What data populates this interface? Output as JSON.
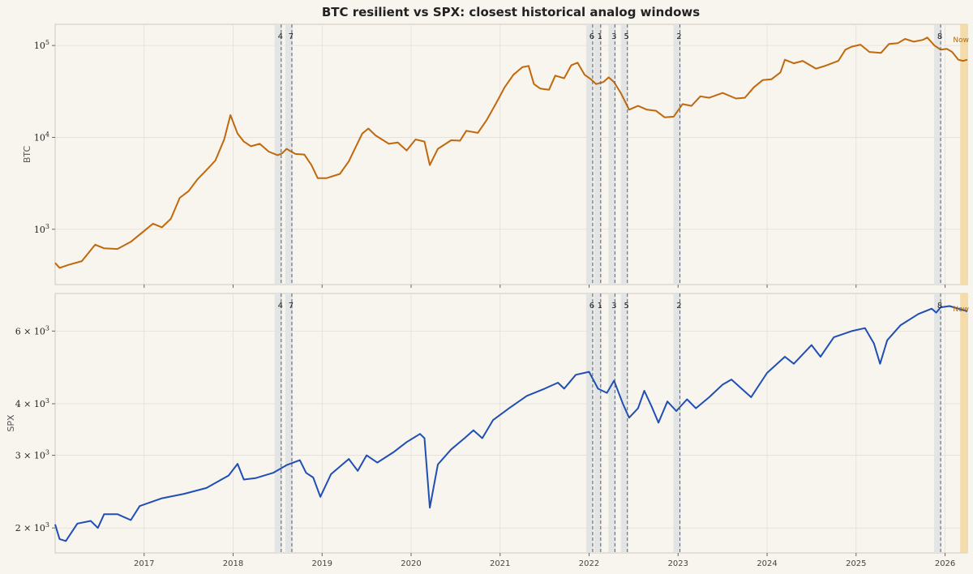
{
  "title": "BTC resilient vs SPX: closest historical analog windows",
  "colors": {
    "background": "#f8f4ee",
    "btc_line": "#c0690c",
    "spx_line": "#1f4fb5",
    "window_shade": "#dfe3e1",
    "now_shade": "#f3dcaa",
    "grid": "#e4ded6"
  },
  "chart_data": {
    "type": "line",
    "x_range": [
      2016.0,
      2026.25
    ],
    "x_ticks": [
      "2017",
      "2018",
      "2019",
      "2020",
      "2021",
      "2022",
      "2023",
      "2024",
      "2025",
      "2026"
    ],
    "analog_windows": [
      {
        "label": "4",
        "x": 2018.54
      },
      {
        "label": "7",
        "x": 2018.66
      },
      {
        "label": "6",
        "x": 2022.04
      },
      {
        "label": "1",
        "x": 2022.13
      },
      {
        "label": "3",
        "x": 2022.29
      },
      {
        "label": "5",
        "x": 2022.43
      },
      {
        "label": "2",
        "x": 2023.02
      },
      {
        "label": "8",
        "x": 2025.95
      }
    ],
    "now_label": "Now",
    "now_window": [
      2026.17,
      2026.25
    ],
    "panels": [
      {
        "name": "btc",
        "series_name": "BTC",
        "ylabel": "BTC",
        "scale": "log",
        "ylim": [
          250,
          170000
        ],
        "y_tick_labels": [
          {
            "value": 1000,
            "base": "10",
            "exp": "3"
          },
          {
            "value": 10000,
            "base": "10",
            "exp": "4"
          },
          {
            "value": 100000,
            "base": "10",
            "exp": "5"
          }
        ],
        "points": [
          [
            2016.0,
            430
          ],
          [
            2016.05,
            380
          ],
          [
            2016.15,
            410
          ],
          [
            2016.3,
            450
          ],
          [
            2016.45,
            680
          ],
          [
            2016.55,
            620
          ],
          [
            2016.7,
            610
          ],
          [
            2016.85,
            730
          ],
          [
            2017.0,
            960
          ],
          [
            2017.1,
            1150
          ],
          [
            2017.2,
            1050
          ],
          [
            2017.3,
            1300
          ],
          [
            2017.4,
            2200
          ],
          [
            2017.5,
            2600
          ],
          [
            2017.6,
            3500
          ],
          [
            2017.7,
            4400
          ],
          [
            2017.8,
            5600
          ],
          [
            2017.9,
            9500
          ],
          [
            2017.97,
            17500
          ],
          [
            2018.05,
            11000
          ],
          [
            2018.12,
            9000
          ],
          [
            2018.2,
            8000
          ],
          [
            2018.3,
            8500
          ],
          [
            2018.4,
            7000
          ],
          [
            2018.5,
            6400
          ],
          [
            2018.55,
            6700
          ],
          [
            2018.6,
            7500
          ],
          [
            2018.7,
            6600
          ],
          [
            2018.8,
            6500
          ],
          [
            2018.88,
            5000
          ],
          [
            2018.95,
            3600
          ],
          [
            2019.05,
            3600
          ],
          [
            2019.2,
            4000
          ],
          [
            2019.3,
            5500
          ],
          [
            2019.45,
            11000
          ],
          [
            2019.52,
            12500
          ],
          [
            2019.6,
            10500
          ],
          [
            2019.75,
            8500
          ],
          [
            2019.85,
            8800
          ],
          [
            2019.95,
            7200
          ],
          [
            2020.05,
            9500
          ],
          [
            2020.15,
            9000
          ],
          [
            2020.21,
            5000
          ],
          [
            2020.3,
            7500
          ],
          [
            2020.45,
            9300
          ],
          [
            2020.55,
            9200
          ],
          [
            2020.62,
            11800
          ],
          [
            2020.75,
            11200
          ],
          [
            2020.85,
            15500
          ],
          [
            2020.95,
            23000
          ],
          [
            2021.05,
            35000
          ],
          [
            2021.15,
            48000
          ],
          [
            2021.25,
            58000
          ],
          [
            2021.32,
            60000
          ],
          [
            2021.38,
            38000
          ],
          [
            2021.45,
            34000
          ],
          [
            2021.55,
            33000
          ],
          [
            2021.62,
            47000
          ],
          [
            2021.72,
            44000
          ],
          [
            2021.8,
            61000
          ],
          [
            2021.87,
            65000
          ],
          [
            2021.95,
            48000
          ],
          [
            2022.02,
            43000
          ],
          [
            2022.08,
            38000
          ],
          [
            2022.16,
            40000
          ],
          [
            2022.22,
            45000
          ],
          [
            2022.28,
            40000
          ],
          [
            2022.36,
            30000
          ],
          [
            2022.45,
            20000
          ],
          [
            2022.55,
            22000
          ],
          [
            2022.65,
            20000
          ],
          [
            2022.75,
            19500
          ],
          [
            2022.85,
            16500
          ],
          [
            2022.95,
            16800
          ],
          [
            2023.05,
            23000
          ],
          [
            2023.15,
            22000
          ],
          [
            2023.25,
            28000
          ],
          [
            2023.35,
            27000
          ],
          [
            2023.5,
            30500
          ],
          [
            2023.65,
            26500
          ],
          [
            2023.75,
            27000
          ],
          [
            2023.85,
            35000
          ],
          [
            2023.95,
            42000
          ],
          [
            2024.05,
            43000
          ],
          [
            2024.15,
            51000
          ],
          [
            2024.2,
            70000
          ],
          [
            2024.3,
            64000
          ],
          [
            2024.4,
            68000
          ],
          [
            2024.55,
            56000
          ],
          [
            2024.65,
            60000
          ],
          [
            2024.8,
            68000
          ],
          [
            2024.88,
            90000
          ],
          [
            2024.95,
            97000
          ],
          [
            2025.05,
            102000
          ],
          [
            2025.15,
            85000
          ],
          [
            2025.28,
            83000
          ],
          [
            2025.37,
            104000
          ],
          [
            2025.47,
            106000
          ],
          [
            2025.55,
            118000
          ],
          [
            2025.65,
            110000
          ],
          [
            2025.75,
            115000
          ],
          [
            2025.8,
            122000
          ],
          [
            2025.88,
            100000
          ],
          [
            2025.95,
            90000
          ],
          [
            2026.02,
            92000
          ],
          [
            2026.08,
            85000
          ],
          [
            2026.15,
            70000
          ],
          [
            2026.2,
            68000
          ],
          [
            2026.25,
            70000
          ]
        ]
      },
      {
        "name": "spx",
        "series_name": "SPX",
        "ylabel": "SPX",
        "scale": "log",
        "ylim": [
          1740,
          7400
        ],
        "y_tick_labels": [
          {
            "value": 2000,
            "base": "2 × 10",
            "exp": "3"
          },
          {
            "value": 3000,
            "base": "3 × 10",
            "exp": "3"
          },
          {
            "value": 4000,
            "base": "4 × 10",
            "exp": "3"
          },
          {
            "value": 6000,
            "base": "6 × 10",
            "exp": "3"
          }
        ],
        "points": [
          [
            2016.0,
            2040
          ],
          [
            2016.05,
            1880
          ],
          [
            2016.12,
            1860
          ],
          [
            2016.25,
            2050
          ],
          [
            2016.4,
            2080
          ],
          [
            2016.48,
            2000
          ],
          [
            2016.55,
            2160
          ],
          [
            2016.7,
            2160
          ],
          [
            2016.85,
            2090
          ],
          [
            2016.95,
            2260
          ],
          [
            2017.2,
            2360
          ],
          [
            2017.45,
            2420
          ],
          [
            2017.7,
            2500
          ],
          [
            2017.95,
            2680
          ],
          [
            2018.05,
            2860
          ],
          [
            2018.12,
            2620
          ],
          [
            2018.25,
            2640
          ],
          [
            2018.45,
            2720
          ],
          [
            2018.6,
            2840
          ],
          [
            2018.75,
            2920
          ],
          [
            2018.82,
            2720
          ],
          [
            2018.9,
            2650
          ],
          [
            2018.98,
            2380
          ],
          [
            2019.1,
            2700
          ],
          [
            2019.3,
            2940
          ],
          [
            2019.4,
            2750
          ],
          [
            2019.5,
            3000
          ],
          [
            2019.62,
            2880
          ],
          [
            2019.8,
            3050
          ],
          [
            2019.95,
            3230
          ],
          [
            2020.1,
            3380
          ],
          [
            2020.15,
            3300
          ],
          [
            2020.21,
            2240
          ],
          [
            2020.3,
            2850
          ],
          [
            2020.45,
            3100
          ],
          [
            2020.6,
            3300
          ],
          [
            2020.7,
            3450
          ],
          [
            2020.8,
            3300
          ],
          [
            2020.92,
            3650
          ],
          [
            2021.1,
            3900
          ],
          [
            2021.3,
            4180
          ],
          [
            2021.5,
            4350
          ],
          [
            2021.65,
            4500
          ],
          [
            2021.72,
            4350
          ],
          [
            2021.85,
            4700
          ],
          [
            2022.0,
            4780
          ],
          [
            2022.1,
            4350
          ],
          [
            2022.2,
            4250
          ],
          [
            2022.28,
            4550
          ],
          [
            2022.38,
            4000
          ],
          [
            2022.45,
            3700
          ],
          [
            2022.55,
            3900
          ],
          [
            2022.62,
            4300
          ],
          [
            2022.7,
            3950
          ],
          [
            2022.78,
            3600
          ],
          [
            2022.88,
            4050
          ],
          [
            2022.98,
            3840
          ],
          [
            2023.1,
            4100
          ],
          [
            2023.2,
            3900
          ],
          [
            2023.35,
            4150
          ],
          [
            2023.5,
            4450
          ],
          [
            2023.6,
            4580
          ],
          [
            2023.82,
            4150
          ],
          [
            2024.0,
            4750
          ],
          [
            2024.2,
            5200
          ],
          [
            2024.3,
            5000
          ],
          [
            2024.5,
            5550
          ],
          [
            2024.6,
            5200
          ],
          [
            2024.75,
            5800
          ],
          [
            2024.95,
            6000
          ],
          [
            2025.1,
            6100
          ],
          [
            2025.2,
            5600
          ],
          [
            2025.27,
            5000
          ],
          [
            2025.35,
            5700
          ],
          [
            2025.5,
            6200
          ],
          [
            2025.7,
            6600
          ],
          [
            2025.85,
            6800
          ],
          [
            2025.9,
            6650
          ],
          [
            2025.95,
            6850
          ],
          [
            2026.05,
            6900
          ],
          [
            2026.15,
            6800
          ],
          [
            2026.25,
            6700
          ]
        ]
      }
    ]
  }
}
